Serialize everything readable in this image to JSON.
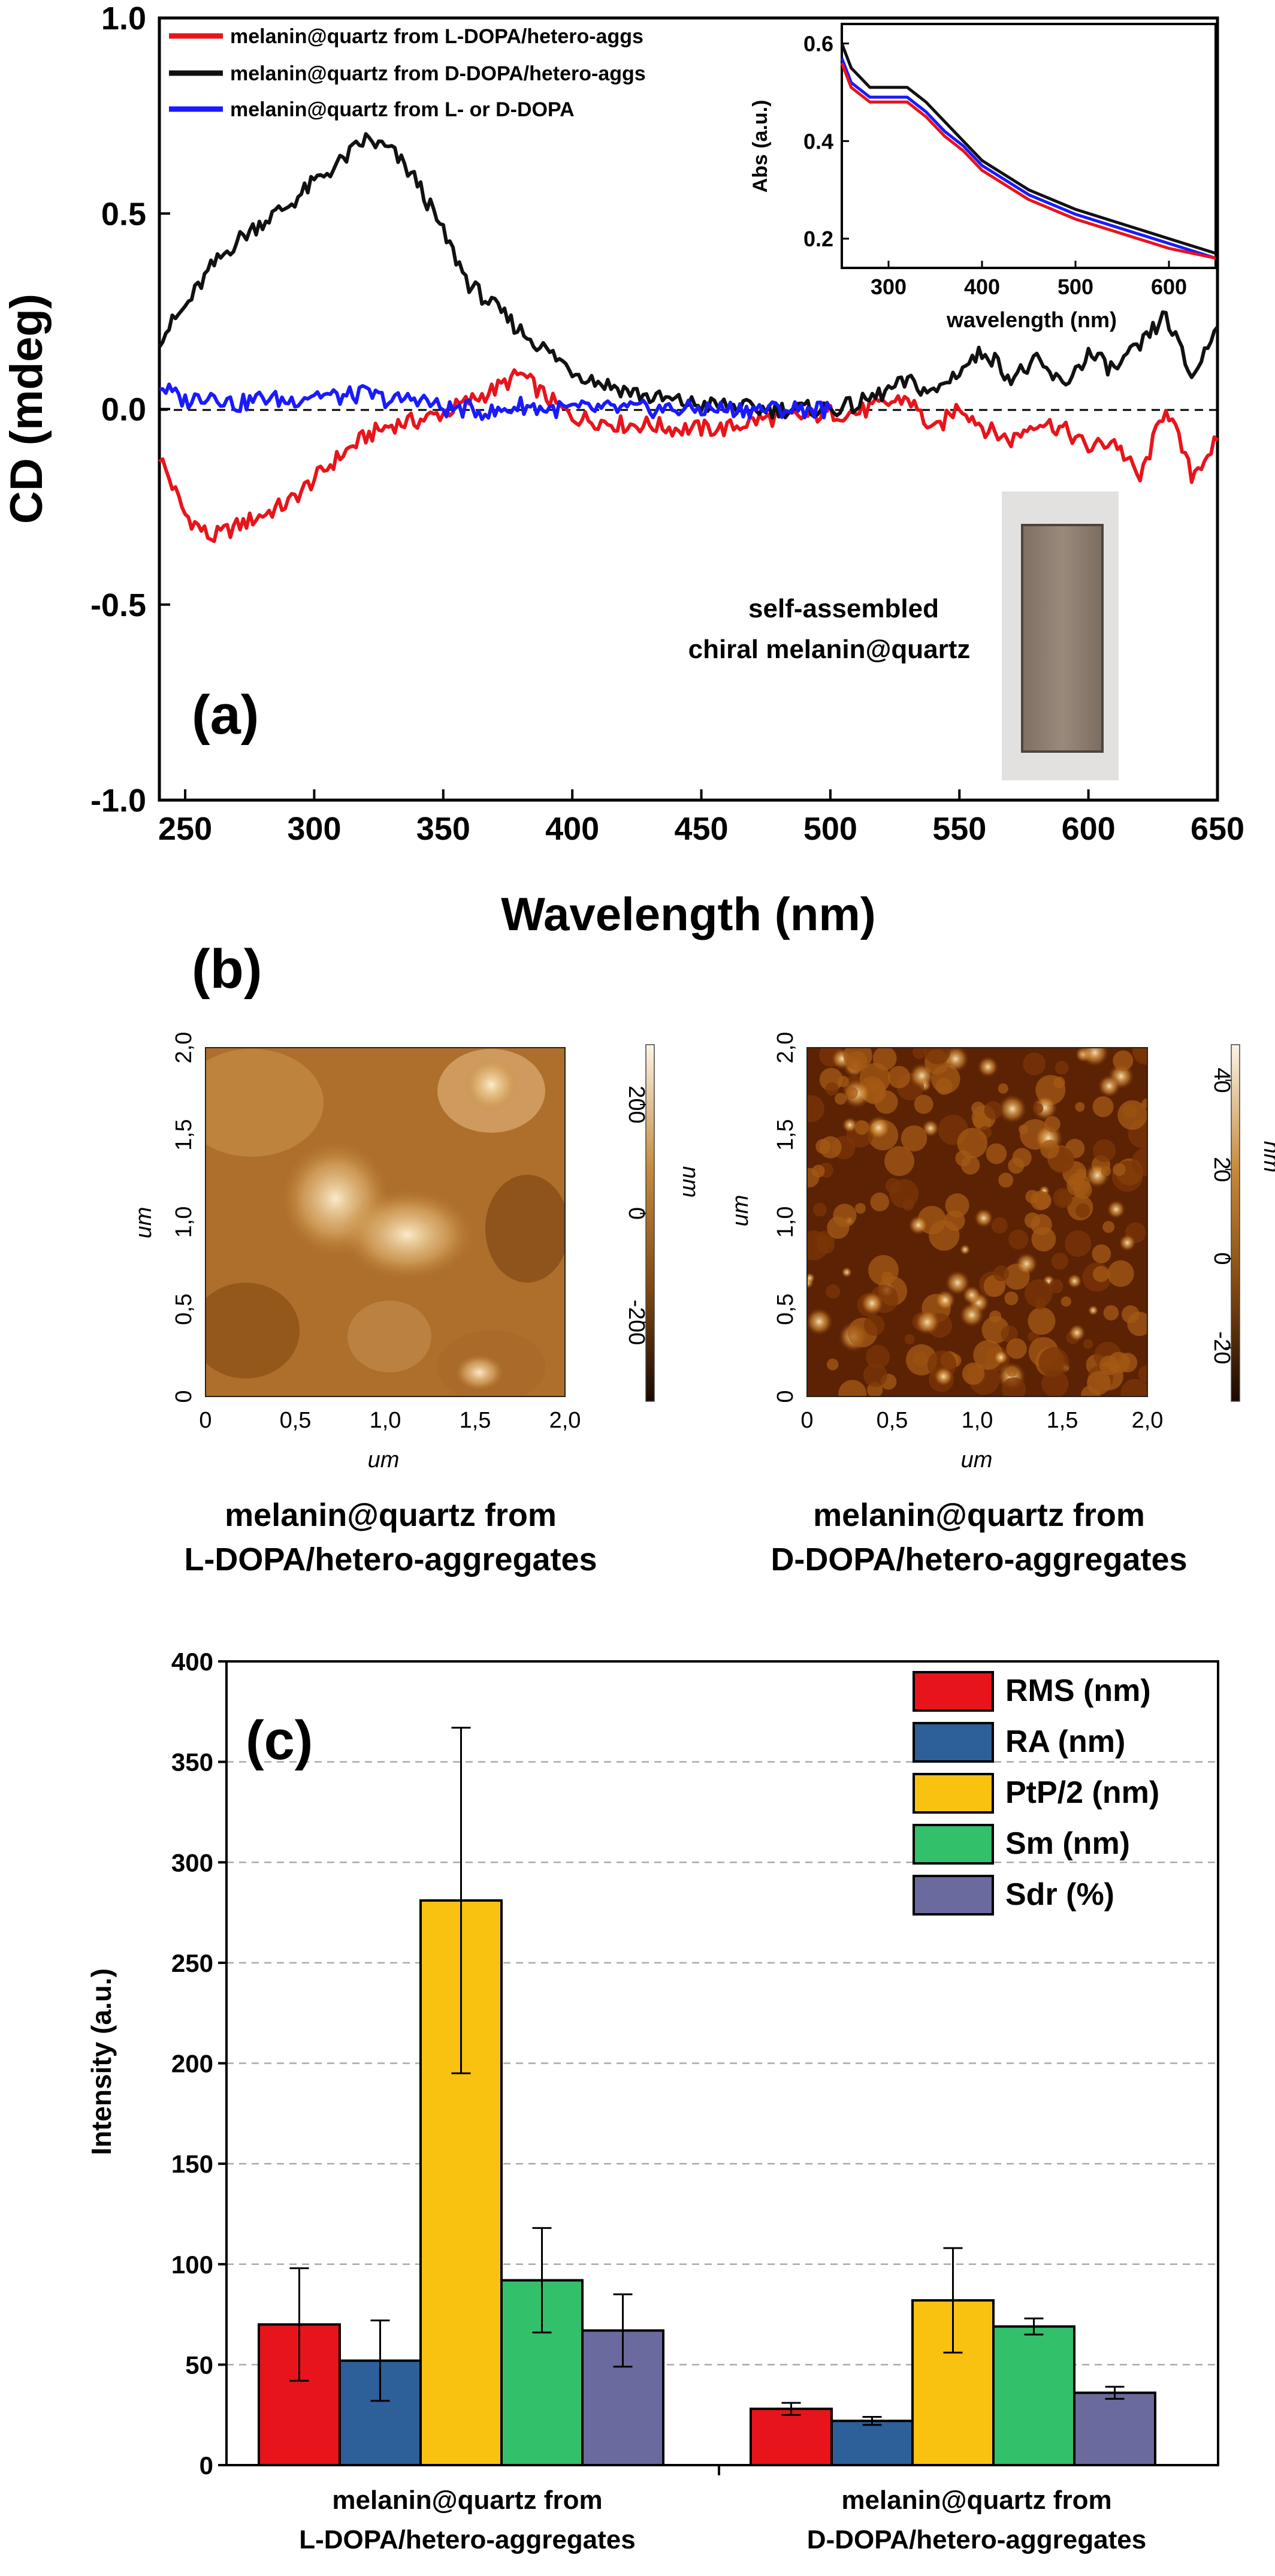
{
  "panel_a": {
    "label": "(a)",
    "ylabel": "CD (mdeg)",
    "xlabel": "Wavelength (nm)",
    "yticks": [
      "1.0",
      "0.5",
      "0.0",
      "-0.5",
      "-1.0"
    ],
    "xticks": [
      "250",
      "300",
      "350",
      "400",
      "450",
      "500",
      "550",
      "600",
      "650"
    ],
    "legend": [
      "melanin@quartz from L-DOPA/hetero-aggs",
      "melanin@quartz from D-DOPA/hetero-aggs",
      "melanin@quartz from L- or D-DOPA"
    ],
    "photo_caption_1": "self-assembled",
    "photo_caption_2": "chiral melanin@quartz",
    "inset": {
      "ylabel": "Abs (a.u.)",
      "xlabel": "wavelength (nm)",
      "yticks": [
        "0.6",
        "0.4",
        "0.2"
      ],
      "xticks": [
        "300",
        "400",
        "500",
        "600"
      ]
    }
  },
  "panel_b": {
    "label": "(b)",
    "left": {
      "yticks": [
        "2,0",
        "1,5",
        "1,0",
        "0,5",
        "0"
      ],
      "xticks": [
        "0",
        "0,5",
        "1,0",
        "1,5",
        "2,0"
      ],
      "axis_unit": "um",
      "scale_ticks": [
        "200",
        "0",
        "-200"
      ],
      "scale_unit": "nm",
      "caption_1": "melanin@quartz from",
      "caption_2": "L-DOPA/hetero-aggregates"
    },
    "right": {
      "yticks": [
        "2,0",
        "1,5",
        "1,0",
        "0,5",
        "0"
      ],
      "xticks": [
        "0",
        "0,5",
        "1,0",
        "1,5",
        "2,0"
      ],
      "axis_unit": "um",
      "scale_ticks": [
        "40",
        "20",
        "0",
        "-20"
      ],
      "scale_unit": "nm",
      "caption_1": "melanin@quartz from",
      "caption_2": "D-DOPA/hetero-aggregates"
    }
  },
  "panel_c": {
    "label": "(c)",
    "ylabel": "Intensity (a.u.)",
    "yticks": [
      "400",
      "350",
      "300",
      "250",
      "200",
      "150",
      "100",
      "50",
      "0"
    ],
    "cat1_line1": "melanin@quartz from",
    "cat1_line2": "L-DOPA/hetero-aggregates",
    "cat2_line1": "melanin@quartz from",
    "cat2_line2": "D-DOPA/hetero-aggregates"
  },
  "chart_data": [
    {
      "type": "line",
      "xlabel": "Wavelength (nm)",
      "ylabel": "CD (mdeg)",
      "xlim": [
        240,
        650
      ],
      "ylim": [
        -1.0,
        1.0
      ],
      "x": [
        240,
        250,
        260,
        270,
        280,
        290,
        300,
        310,
        320,
        330,
        340,
        350,
        360,
        370,
        380,
        390,
        400,
        410,
        420,
        430,
        440,
        450,
        460,
        470,
        480,
        490,
        500,
        510,
        520,
        530,
        540,
        550,
        560,
        570,
        580,
        590,
        600,
        610,
        620,
        630,
        640,
        650
      ],
      "series": [
        {
          "name": "melanin@quartz from L-DOPA/hetero-aggs",
          "color": "#e8141b",
          "values": [
            -0.12,
            -0.27,
            -0.33,
            -0.3,
            -0.27,
            -0.24,
            -0.18,
            -0.12,
            -0.07,
            -0.04,
            -0.03,
            -0.01,
            0.02,
            0.05,
            0.09,
            0.03,
            -0.02,
            -0.03,
            -0.04,
            -0.04,
            -0.05,
            -0.05,
            -0.05,
            -0.03,
            -0.02,
            -0.02,
            -0.01,
            -0.01,
            0.01,
            0.03,
            -0.06,
            0.01,
            -0.05,
            -0.08,
            -0.03,
            -0.05,
            -0.1,
            -0.08,
            -0.18,
            0.01,
            -0.17,
            -0.08
          ]
        },
        {
          "name": "melanin@quartz from D-DOPA/hetero-aggs",
          "color": "#111111",
          "values": [
            0.18,
            0.26,
            0.36,
            0.43,
            0.48,
            0.52,
            0.58,
            0.63,
            0.69,
            0.66,
            0.58,
            0.45,
            0.32,
            0.26,
            0.2,
            0.15,
            0.1,
            0.07,
            0.05,
            0.03,
            0.02,
            0.01,
            0.01,
            0.0,
            0.0,
            0.0,
            0.0,
            0.01,
            0.04,
            0.07,
            0.04,
            0.1,
            0.15,
            0.08,
            0.12,
            0.06,
            0.14,
            0.1,
            0.16,
            0.24,
            0.08,
            0.21
          ]
        },
        {
          "name": "melanin@quartz from L- or D-DOPA",
          "color": "#1a1aff",
          "values": [
            0.06,
            0.02,
            0.04,
            0.01,
            0.03,
            0.02,
            0.04,
            0.03,
            0.04,
            0.02,
            0.03,
            0.0,
            0.0,
            -0.01,
            0.01,
            0.0,
            0.0,
            0.0,
            0.0,
            0.0,
            0.0,
            0.0,
            0.0,
            0.0,
            0.0,
            0.0,
            0.0,
            null,
            null,
            null,
            null,
            null,
            null,
            null,
            null,
            null,
            null,
            null,
            null,
            null,
            null,
            null
          ]
        }
      ],
      "reference_line": {
        "y": 0.0,
        "style": "dashed"
      }
    },
    {
      "type": "line",
      "title": "inset",
      "xlabel": "wavelength (nm)",
      "ylabel": "Abs (a.u.)",
      "xlim": [
        250,
        650
      ],
      "ylim": [
        0.14,
        0.64
      ],
      "x": [
        250,
        260,
        280,
        300,
        320,
        340,
        360,
        380,
        400,
        450,
        500,
        550,
        600,
        650
      ],
      "series": [
        {
          "name": "melanin@quartz from D-DOPA/hetero-aggs",
          "color": "#111111",
          "values": [
            0.6,
            0.55,
            0.51,
            0.51,
            0.51,
            0.48,
            0.44,
            0.4,
            0.36,
            0.3,
            0.26,
            0.23,
            0.2,
            0.17
          ]
        },
        {
          "name": "melanin@quartz from L- or D-DOPA",
          "color": "#1a1aff",
          "values": [
            0.57,
            0.52,
            0.49,
            0.49,
            0.49,
            0.46,
            0.42,
            0.39,
            0.35,
            0.29,
            0.25,
            0.22,
            0.19,
            0.16
          ]
        },
        {
          "name": "melanin@quartz from L-DOPA/hetero-aggs",
          "color": "#e8141b",
          "values": [
            0.56,
            0.51,
            0.48,
            0.48,
            0.48,
            0.45,
            0.41,
            0.38,
            0.34,
            0.28,
            0.24,
            0.21,
            0.18,
            0.16
          ]
        }
      ]
    },
    {
      "type": "bar",
      "ylabel": "Intensity (a.u.)",
      "ylim": [
        0,
        400
      ],
      "grid": true,
      "legend_position": "top-right",
      "categories": [
        "melanin@quartz from L-DOPA/hetero-aggregates",
        "melanin@quartz from D-DOPA/hetero-aggregates"
      ],
      "series": [
        {
          "name": "RMS (nm)",
          "color": "#e8141b",
          "values": [
            70,
            28
          ],
          "errors": [
            28,
            3
          ]
        },
        {
          "name": "RA (nm)",
          "color": "#2d5f99",
          "values": [
            52,
            22
          ],
          "errors": [
            20,
            2
          ]
        },
        {
          "name": "PtP/2 (nm)",
          "color": "#f9c211",
          "values": [
            281,
            82
          ],
          "errors": [
            86,
            26
          ]
        },
        {
          "name": "Sm (nm)",
          "color": "#33c06b",
          "values": [
            92,
            69
          ],
          "errors": [
            26,
            4
          ]
        },
        {
          "name": "Sdr (%)",
          "color": "#6a6a9e",
          "values": [
            67,
            36
          ],
          "errors": [
            18,
            3
          ]
        }
      ]
    }
  ]
}
